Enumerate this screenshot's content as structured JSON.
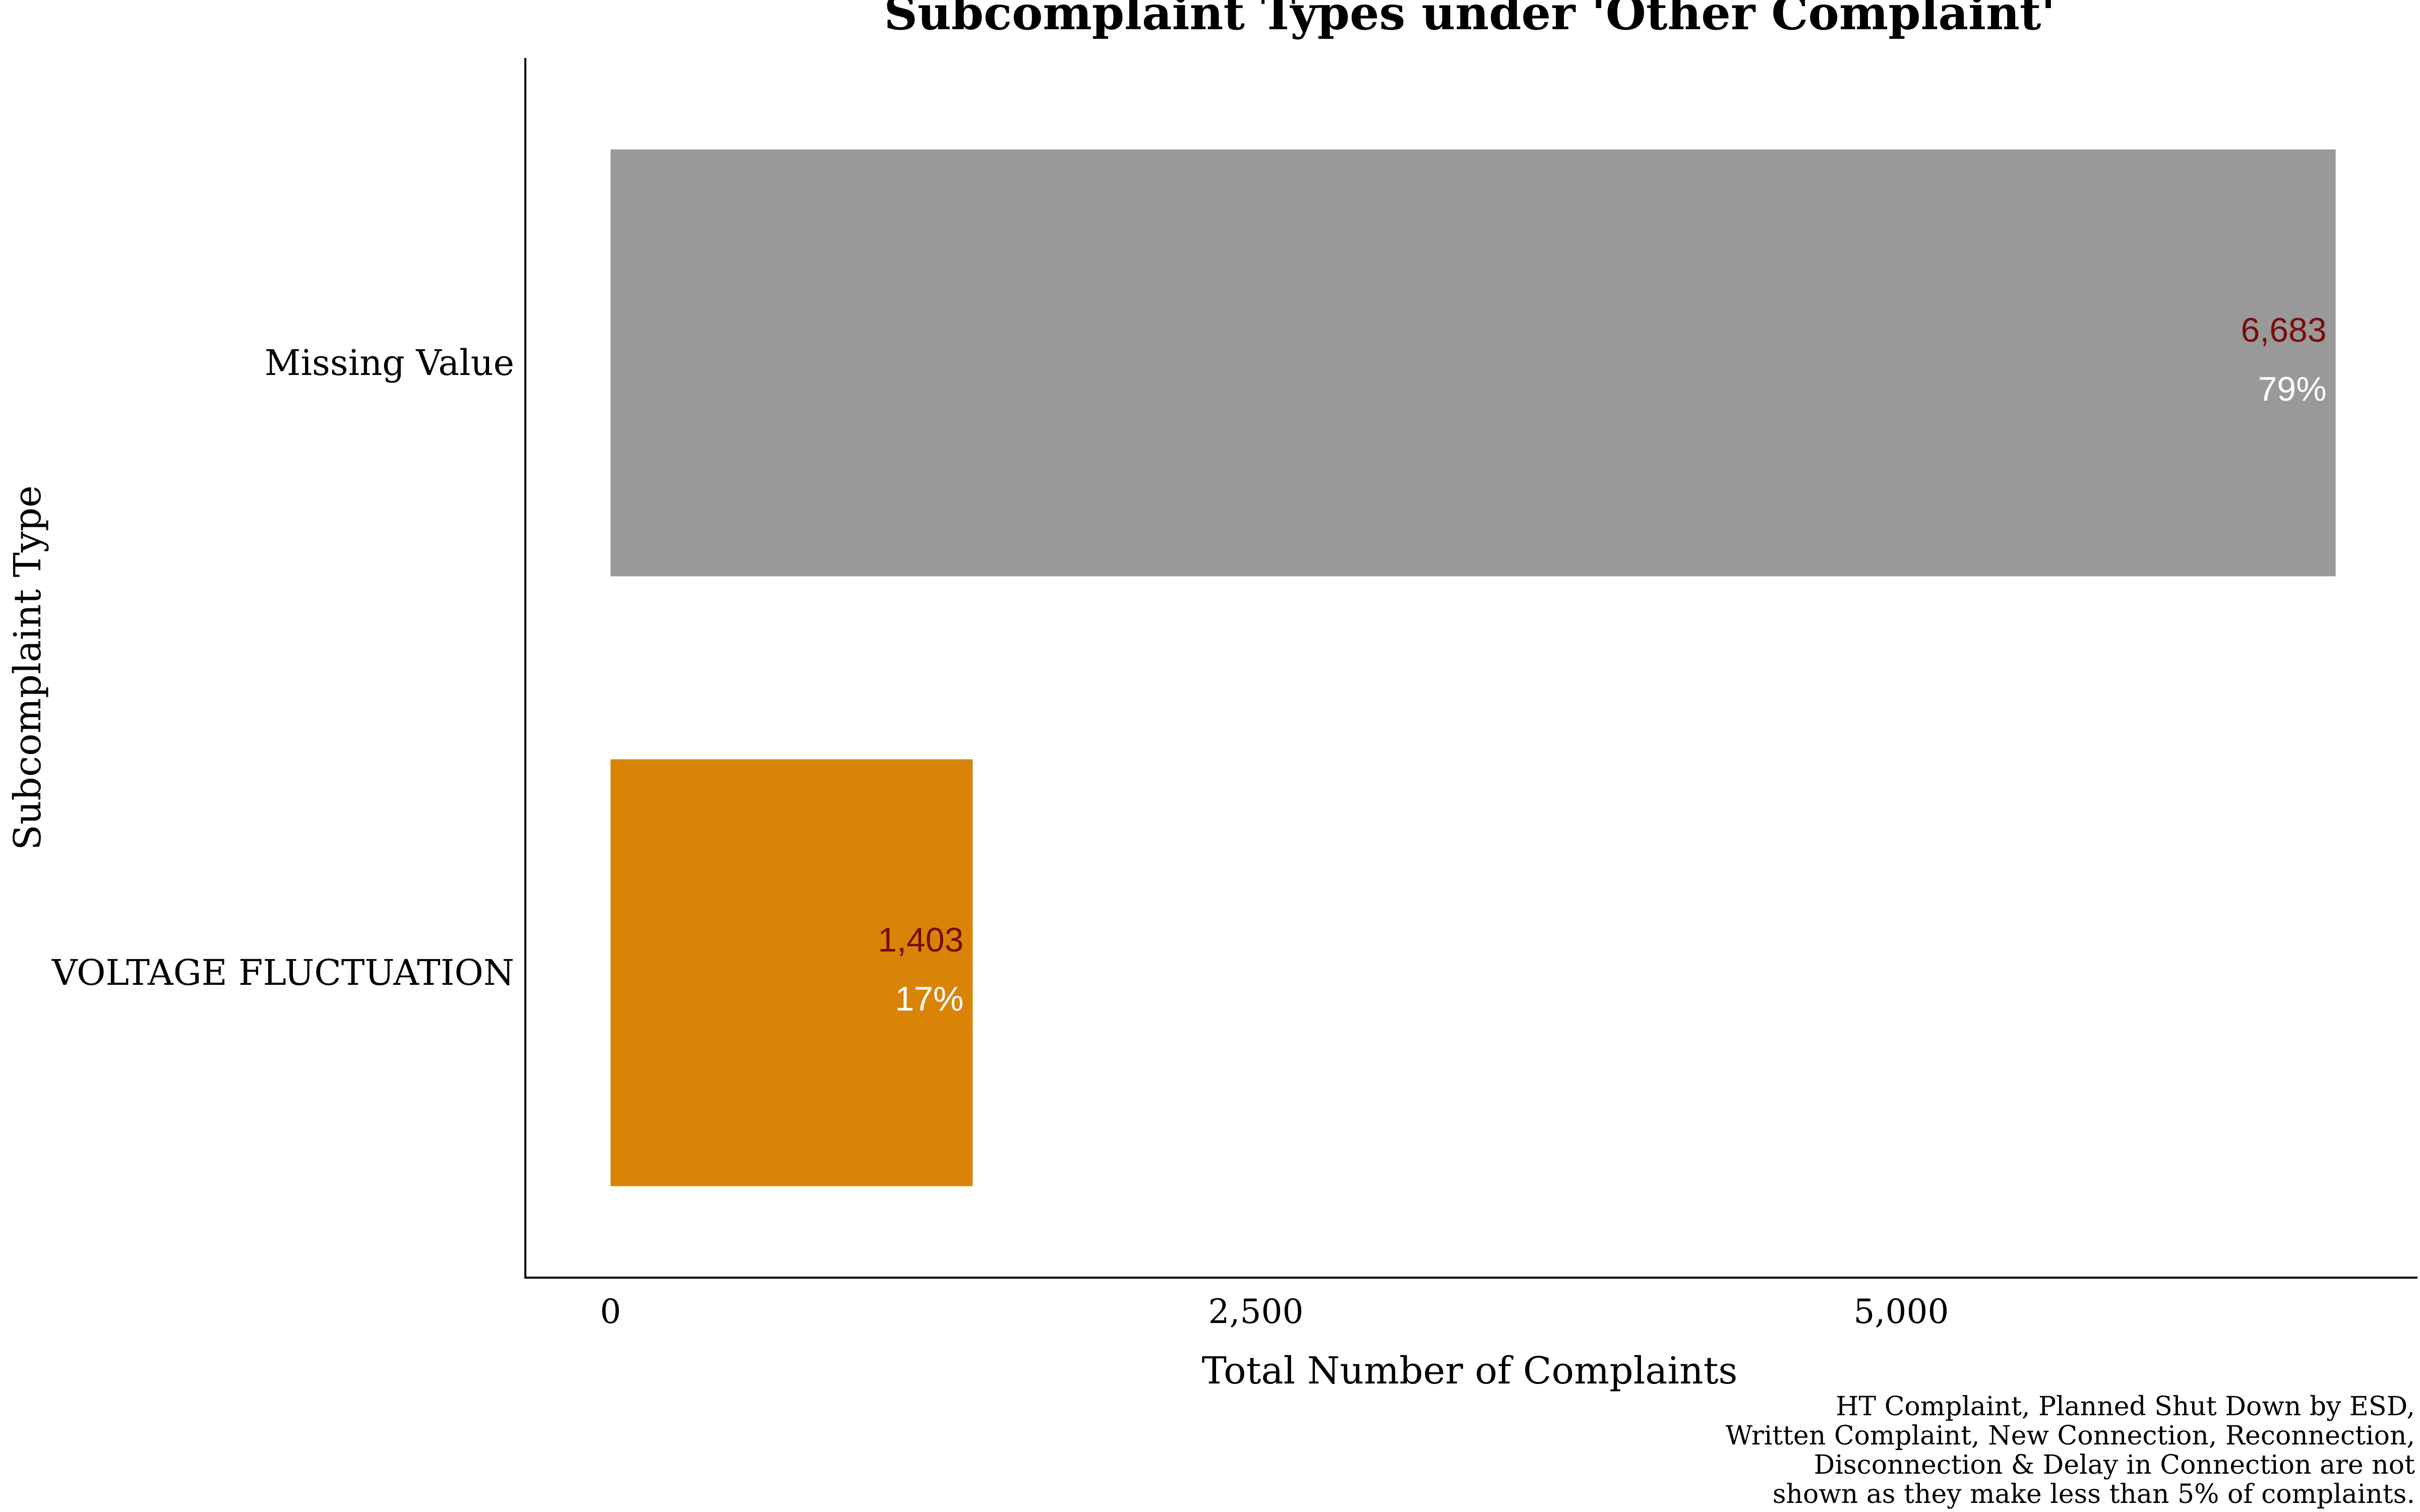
{
  "chart_data": {
    "type": "bar",
    "orientation": "horizontal",
    "title": "Subcomplaint Types under 'Other Complaint'",
    "xlabel": "Total Number of Complaints",
    "ylabel": "Subcomplaint Type",
    "categories": [
      "Missing Value",
      "VOLTAGE FLUCTUATION"
    ],
    "values": [
      6683,
      1403
    ],
    "value_labels": [
      "6,683",
      "1,403"
    ],
    "percent_labels": [
      "79%",
      "17%"
    ],
    "bar_colors": [
      "#999999",
      "#D98407"
    ],
    "xlim": [
      -330,
      7000
    ],
    "xticks": [
      0,
      2500,
      5000
    ],
    "xtick_labels": [
      "0",
      "2,500",
      "5,000"
    ],
    "grid": false,
    "legend": "none",
    "caption": [
      "HT Complaint, Planned Shut Down by ESD,",
      "Written Complaint, New Connection, Reconnection,",
      "Disconnection & Delay in Connection are not",
      "shown as they make less than 5% of complaints."
    ],
    "value_label_color": "#7A0C0C",
    "percent_label_color": "#FFFFFF"
  }
}
